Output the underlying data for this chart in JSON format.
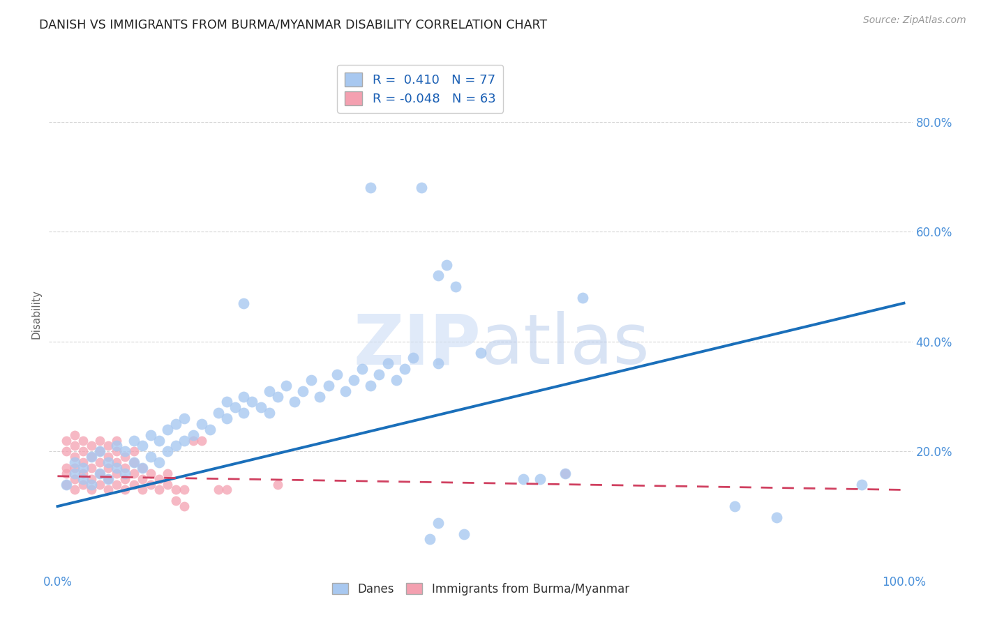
{
  "title": "DANISH VS IMMIGRANTS FROM BURMA/MYANMAR DISABILITY CORRELATION CHART",
  "source": "Source: ZipAtlas.com",
  "ylabel": "Disability",
  "xlim": [
    0.0,
    1.0
  ],
  "ylim": [
    0.0,
    0.9
  ],
  "xticks": [
    0.0,
    0.2,
    0.4,
    0.6,
    0.8,
    1.0
  ],
  "xticklabels": [
    "0.0%",
    "",
    "",
    "",
    "",
    "100.0%"
  ],
  "yticks": [
    0.2,
    0.4,
    0.6,
    0.8
  ],
  "yticklabels": [
    "20.0%",
    "40.0%",
    "60.0%",
    "80.0%"
  ],
  "danes_R": 0.41,
  "danes_N": 77,
  "immigrants_R": -0.048,
  "immigrants_N": 63,
  "legend_label_danes": "Danes",
  "legend_label_immigrants": "Immigrants from Burma/Myanmar",
  "danes_color": "#a8c8f0",
  "danes_line_color": "#1a6fba",
  "immigrants_color": "#f4a0b0",
  "immigrants_line_color": "#d04060",
  "background_color": "#ffffff",
  "danes_scatter": [
    [
      0.01,
      0.14
    ],
    [
      0.02,
      0.16
    ],
    [
      0.02,
      0.18
    ],
    [
      0.03,
      0.15
    ],
    [
      0.03,
      0.17
    ],
    [
      0.04,
      0.14
    ],
    [
      0.04,
      0.19
    ],
    [
      0.05,
      0.16
    ],
    [
      0.05,
      0.2
    ],
    [
      0.06,
      0.15
    ],
    [
      0.06,
      0.18
    ],
    [
      0.07,
      0.17
    ],
    [
      0.07,
      0.21
    ],
    [
      0.08,
      0.16
    ],
    [
      0.08,
      0.2
    ],
    [
      0.09,
      0.18
    ],
    [
      0.09,
      0.22
    ],
    [
      0.1,
      0.17
    ],
    [
      0.1,
      0.21
    ],
    [
      0.11,
      0.19
    ],
    [
      0.11,
      0.23
    ],
    [
      0.12,
      0.18
    ],
    [
      0.12,
      0.22
    ],
    [
      0.13,
      0.2
    ],
    [
      0.13,
      0.24
    ],
    [
      0.14,
      0.21
    ],
    [
      0.14,
      0.25
    ],
    [
      0.15,
      0.22
    ],
    [
      0.15,
      0.26
    ],
    [
      0.16,
      0.23
    ],
    [
      0.17,
      0.25
    ],
    [
      0.18,
      0.24
    ],
    [
      0.19,
      0.27
    ],
    [
      0.2,
      0.26
    ],
    [
      0.2,
      0.29
    ],
    [
      0.21,
      0.28
    ],
    [
      0.22,
      0.27
    ],
    [
      0.22,
      0.3
    ],
    [
      0.23,
      0.29
    ],
    [
      0.24,
      0.28
    ],
    [
      0.25,
      0.31
    ],
    [
      0.25,
      0.27
    ],
    [
      0.26,
      0.3
    ],
    [
      0.27,
      0.32
    ],
    [
      0.28,
      0.29
    ],
    [
      0.29,
      0.31
    ],
    [
      0.3,
      0.33
    ],
    [
      0.31,
      0.3
    ],
    [
      0.32,
      0.32
    ],
    [
      0.33,
      0.34
    ],
    [
      0.34,
      0.31
    ],
    [
      0.35,
      0.33
    ],
    [
      0.36,
      0.35
    ],
    [
      0.37,
      0.32
    ],
    [
      0.38,
      0.34
    ],
    [
      0.39,
      0.36
    ],
    [
      0.4,
      0.33
    ],
    [
      0.41,
      0.35
    ],
    [
      0.42,
      0.37
    ],
    [
      0.22,
      0.47
    ],
    [
      0.37,
      0.68
    ],
    [
      0.43,
      0.68
    ],
    [
      0.45,
      0.52
    ],
    [
      0.46,
      0.54
    ],
    [
      0.47,
      0.5
    ],
    [
      0.45,
      0.36
    ],
    [
      0.44,
      0.04
    ],
    [
      0.48,
      0.05
    ],
    [
      0.45,
      0.07
    ],
    [
      0.5,
      0.38
    ],
    [
      0.55,
      0.15
    ],
    [
      0.57,
      0.15
    ],
    [
      0.6,
      0.16
    ],
    [
      0.62,
      0.48
    ],
    [
      0.8,
      0.1
    ],
    [
      0.85,
      0.08
    ],
    [
      0.95,
      0.14
    ]
  ],
  "immigrants_scatter": [
    [
      0.01,
      0.14
    ],
    [
      0.01,
      0.16
    ],
    [
      0.01,
      0.17
    ],
    [
      0.01,
      0.2
    ],
    [
      0.01,
      0.22
    ],
    [
      0.02,
      0.13
    ],
    [
      0.02,
      0.15
    ],
    [
      0.02,
      0.17
    ],
    [
      0.02,
      0.19
    ],
    [
      0.02,
      0.21
    ],
    [
      0.02,
      0.23
    ],
    [
      0.03,
      0.14
    ],
    [
      0.03,
      0.16
    ],
    [
      0.03,
      0.18
    ],
    [
      0.03,
      0.2
    ],
    [
      0.03,
      0.22
    ],
    [
      0.04,
      0.13
    ],
    [
      0.04,
      0.15
    ],
    [
      0.04,
      0.17
    ],
    [
      0.04,
      0.19
    ],
    [
      0.04,
      0.21
    ],
    [
      0.05,
      0.14
    ],
    [
      0.05,
      0.16
    ],
    [
      0.05,
      0.18
    ],
    [
      0.05,
      0.2
    ],
    [
      0.05,
      0.22
    ],
    [
      0.06,
      0.13
    ],
    [
      0.06,
      0.15
    ],
    [
      0.06,
      0.17
    ],
    [
      0.06,
      0.19
    ],
    [
      0.06,
      0.21
    ],
    [
      0.07,
      0.14
    ],
    [
      0.07,
      0.16
    ],
    [
      0.07,
      0.18
    ],
    [
      0.07,
      0.2
    ],
    [
      0.07,
      0.22
    ],
    [
      0.08,
      0.13
    ],
    [
      0.08,
      0.15
    ],
    [
      0.08,
      0.17
    ],
    [
      0.08,
      0.19
    ],
    [
      0.09,
      0.14
    ],
    [
      0.09,
      0.16
    ],
    [
      0.09,
      0.18
    ],
    [
      0.09,
      0.2
    ],
    [
      0.1,
      0.13
    ],
    [
      0.1,
      0.15
    ],
    [
      0.1,
      0.17
    ],
    [
      0.11,
      0.14
    ],
    [
      0.11,
      0.16
    ],
    [
      0.12,
      0.13
    ],
    [
      0.12,
      0.15
    ],
    [
      0.13,
      0.14
    ],
    [
      0.13,
      0.16
    ],
    [
      0.14,
      0.13
    ],
    [
      0.14,
      0.11
    ],
    [
      0.15,
      0.1
    ],
    [
      0.15,
      0.13
    ],
    [
      0.16,
      0.22
    ],
    [
      0.17,
      0.22
    ],
    [
      0.19,
      0.13
    ],
    [
      0.2,
      0.13
    ],
    [
      0.26,
      0.14
    ],
    [
      0.6,
      0.16
    ]
  ],
  "danes_trendline": [
    [
      0.0,
      0.1
    ],
    [
      1.0,
      0.47
    ]
  ],
  "immigrants_trendline": [
    [
      0.0,
      0.155
    ],
    [
      1.0,
      0.13
    ]
  ]
}
